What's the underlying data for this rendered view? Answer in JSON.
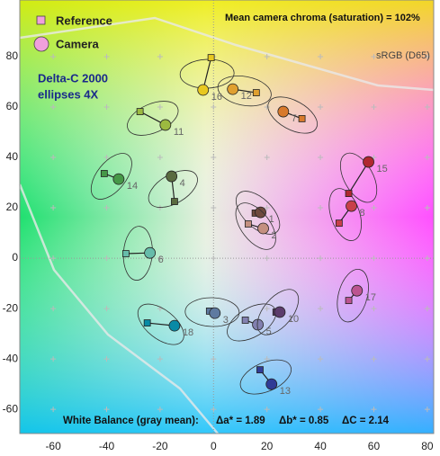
{
  "chart_data": {
    "type": "scatter",
    "legend": {
      "series": [
        {
          "name": "Reference",
          "marker": "square",
          "color": "#f0a0dc"
        },
        {
          "name": "Camera",
          "marker": "circle",
          "color": "#f0a0dc"
        }
      ]
    },
    "annotation": "Mean camera chroma (saturation) = 102%",
    "gamut_label": "sRGB (D65)",
    "ellipse_label": [
      "Delta-C 2000",
      "ellipses 4X"
    ],
    "white_balance": {
      "label": "White Balance (gray mean):",
      "da": "Δa* = 1.89",
      "db": "Δb* = 0.85",
      "dc": "ΔC = 2.14"
    },
    "xlim": [
      -72.5,
      82.4
    ],
    "ylim": [
      -69.6,
      102.5
    ],
    "xticks": [
      -60,
      -40,
      -20,
      0,
      20,
      40,
      60,
      80
    ],
    "yticks": [
      -60,
      -40,
      -20,
      0,
      20,
      40,
      60,
      80
    ],
    "grid": true,
    "patches": [
      {
        "label": "1",
        "color": "#6e4a3e",
        "reference": [
          15.6,
          17.9
        ],
        "camera": [
          17.6,
          18.2
        ]
      },
      {
        "label": "2",
        "color": "#c49080",
        "reference": [
          13.0,
          13.6
        ],
        "camera": [
          18.6,
          11.8
        ]
      },
      {
        "label": "3",
        "color": "#5f7aa0",
        "reference": [
          -1.5,
          -21.0
        ],
        "camera": [
          0.5,
          -21.8
        ]
      },
      {
        "label": "4",
        "color": "#5a6b40",
        "reference": [
          -14.6,
          22.5
        ],
        "camera": [
          -15.7,
          32.5
        ]
      },
      {
        "label": "5",
        "color": "#8280b0",
        "reference": [
          11.9,
          -24.6
        ],
        "camera": [
          16.6,
          -26.4
        ]
      },
      {
        "label": "6",
        "color": "#66bcaa",
        "reference": [
          -32.8,
          1.8
        ],
        "camera": [
          -23.8,
          2.1
        ]
      },
      {
        "label": "7",
        "color": "#d87a2c",
        "reference": [
          33.1,
          55.4
        ],
        "camera": [
          26.1,
          58.2
        ]
      },
      {
        "label": "8",
        "color": "#c8404a",
        "reference": [
          47.0,
          13.9
        ],
        "camera": [
          51.6,
          20.7
        ]
      },
      {
        "label": "10",
        "color": "#5c3c6c",
        "reference": [
          23.4,
          -21.4
        ],
        "camera": [
          24.8,
          -21.4
        ]
      },
      {
        "label": "11",
        "color": "#9cba40",
        "reference": [
          -27.5,
          58.2
        ],
        "camera": [
          -18.0,
          52.9
        ]
      },
      {
        "label": "12",
        "color": "#e0a030",
        "reference": [
          16.0,
          65.7
        ],
        "camera": [
          7.2,
          67.1
        ]
      },
      {
        "label": "13",
        "color": "#303c96",
        "reference": [
          17.4,
          -44.3
        ],
        "camera": [
          21.7,
          -50.0
        ]
      },
      {
        "label": "14",
        "color": "#469848",
        "reference": [
          -40.9,
          33.6
        ],
        "camera": [
          -35.5,
          31.4
        ]
      },
      {
        "label": "15",
        "color": "#b02830",
        "reference": [
          50.6,
          25.7
        ],
        "camera": [
          58.0,
          38.2
        ]
      },
      {
        "label": "16",
        "color": "#e8c820",
        "reference": [
          -0.9,
          79.6
        ],
        "camera": [
          -3.9,
          66.8
        ]
      },
      {
        "label": "17",
        "color": "#bc5490",
        "reference": [
          50.6,
          -16.8
        ],
        "camera": [
          53.7,
          -12.9
        ]
      },
      {
        "label": "18",
        "color": "#088aa6",
        "reference": [
          -24.8,
          -25.7
        ],
        "camera": [
          -14.6,
          -26.8
        ]
      }
    ]
  }
}
